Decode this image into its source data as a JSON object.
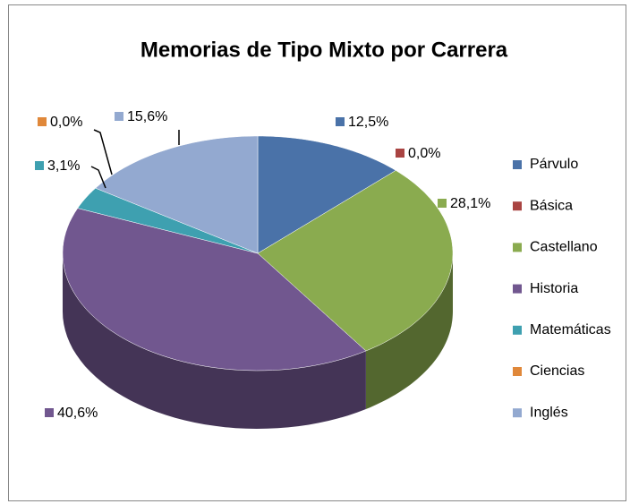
{
  "chart_data": {
    "type": "pie",
    "title": "Memorias de Tipo Mixto por Carrera",
    "categories": [
      "Párvulo",
      "Básica",
      "Castellano",
      "Historia",
      "Matemáticas",
      "Ciencias",
      "Inglés"
    ],
    "values": [
      12.5,
      0,
      28.1,
      40.6,
      3.1,
      0,
      15.6
    ],
    "value_labels": [
      "12,5%",
      "0,0%",
      "28,1%",
      "40,6%",
      "3,1%",
      "0,0%",
      "15,6%"
    ],
    "colors": [
      "#4a72a8",
      "#a94442",
      "#8aab4f",
      "#71578f",
      "#3ea0b0",
      "#e0883a",
      "#93a9d0"
    ],
    "legend": "right"
  }
}
